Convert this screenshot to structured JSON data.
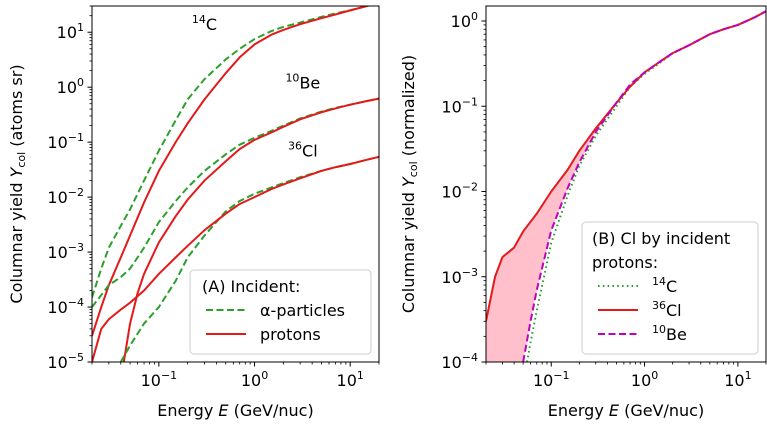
{
  "chart_data": [
    {
      "panel": "A",
      "type": "line",
      "xlabel": "Energy E (GeV/nuc)",
      "ylabel": "Columnar yield Y_col (atoms sr)",
      "xscale": "log",
      "yscale": "log",
      "xlim": [
        0.02,
        20
      ],
      "ylim": [
        1e-05,
        30
      ],
      "xticks": [
        {
          "v": 0.1,
          "b": "10",
          "e": "−1"
        },
        {
          "v": 1,
          "b": "10",
          "e": "0"
        },
        {
          "v": 10,
          "b": "10",
          "e": "1"
        }
      ],
      "yticks": [
        {
          "v": 1e-05,
          "b": "10",
          "e": "−5"
        },
        {
          "v": 0.0001,
          "b": "10",
          "e": "−4"
        },
        {
          "v": 0.001,
          "b": "10",
          "e": "−3"
        },
        {
          "v": 0.01,
          "b": "10",
          "e": "−2"
        },
        {
          "v": 0.1,
          "b": "10",
          "e": "−1"
        },
        {
          "v": 1,
          "b": "10",
          "e": "0"
        },
        {
          "v": 10,
          "b": "10",
          "e": "1"
        }
      ],
      "legend": {
        "placement": "lower-right",
        "title": "(A) Incident:",
        "entries": [
          {
            "label": "α-particles",
            "color": "#2ca02c",
            "dash": "dashed"
          },
          {
            "label": "protons",
            "color": "#e31a1c",
            "dash": "solid"
          }
        ]
      },
      "annotations": [
        {
          "text": "C",
          "sup": "14",
          "x": 0.3,
          "y": 11
        },
        {
          "text": "Be",
          "sup": "10",
          "x": 3.2,
          "y": 0.95
        },
        {
          "text": "Cl",
          "sup": "36",
          "x": 3.2,
          "y": 0.055
        }
      ],
      "series": [
        {
          "isotope": "14C",
          "incident": "alpha",
          "color": "#2ca02c",
          "dash": "dashed",
          "x": [
            0.02,
            0.025,
            0.03,
            0.04,
            0.05,
            0.07,
            0.1,
            0.15,
            0.2,
            0.3,
            0.5,
            0.7,
            1,
            1.5,
            2,
            3,
            5,
            7,
            10,
            15,
            20
          ],
          "y": [
            0.00015,
            0.0005,
            0.0012,
            0.003,
            0.006,
            0.02,
            0.07,
            0.25,
            0.6,
            1.4,
            3.2,
            5,
            7.5,
            10.5,
            12.5,
            15,
            19,
            22,
            25,
            30,
            34
          ]
        },
        {
          "isotope": "14C",
          "incident": "proton",
          "color": "#e31a1c",
          "dash": "solid",
          "x": [
            0.02,
            0.025,
            0.03,
            0.04,
            0.05,
            0.07,
            0.1,
            0.15,
            0.2,
            0.3,
            0.5,
            0.7,
            1,
            1.5,
            2,
            3,
            5,
            7,
            10,
            15,
            20
          ],
          "y": [
            3e-05,
            0.0001,
            0.00025,
            0.0008,
            0.002,
            0.008,
            0.03,
            0.1,
            0.22,
            0.6,
            1.8,
            3.5,
            6,
            9,
            11,
            14,
            18,
            21,
            25,
            30,
            34
          ]
        },
        {
          "isotope": "10Be",
          "incident": "alpha",
          "color": "#2ca02c",
          "dash": "dashed",
          "x": [
            0.02,
            0.03,
            0.04,
            0.05,
            0.07,
            0.1,
            0.15,
            0.2,
            0.3,
            0.5,
            0.7,
            1,
            1.5,
            2,
            3,
            5,
            7,
            10,
            15,
            20
          ],
          "y": [
            0.0001,
            0.00025,
            0.00035,
            0.0005,
            0.0012,
            0.0035,
            0.0085,
            0.015,
            0.03,
            0.06,
            0.09,
            0.12,
            0.16,
            0.2,
            0.27,
            0.36,
            0.42,
            0.48,
            0.56,
            0.62
          ]
        },
        {
          "isotope": "10Be",
          "incident": "proton",
          "color": "#e31a1c",
          "dash": "solid",
          "x": [
            0.043,
            0.05,
            0.06,
            0.07,
            0.1,
            0.15,
            0.2,
            0.3,
            0.5,
            0.7,
            1,
            1.5,
            2,
            3,
            5,
            7,
            10,
            15,
            20
          ],
          "y": [
            1e-05,
            5e-05,
            0.00018,
            0.0004,
            0.0015,
            0.0045,
            0.009,
            0.02,
            0.045,
            0.075,
            0.11,
            0.15,
            0.19,
            0.26,
            0.35,
            0.41,
            0.48,
            0.56,
            0.62
          ]
        },
        {
          "isotope": "36Cl",
          "incident": "alpha",
          "color": "#2ca02c",
          "dash": "dashed",
          "x": [
            0.04,
            0.05,
            0.07,
            0.1,
            0.15,
            0.2,
            0.3,
            0.5,
            0.7,
            1,
            1.5,
            2,
            3,
            5,
            7,
            10,
            15,
            20
          ],
          "y": [
            1e-05,
            2e-05,
            5e-05,
            0.0001,
            0.0003,
            0.0008,
            0.002,
            0.0055,
            0.0085,
            0.0115,
            0.015,
            0.018,
            0.023,
            0.03,
            0.035,
            0.04,
            0.048,
            0.054
          ]
        },
        {
          "isotope": "36Cl",
          "incident": "proton",
          "color": "#e31a1c",
          "dash": "solid",
          "x": [
            0.02,
            0.025,
            0.03,
            0.04,
            0.05,
            0.07,
            0.1,
            0.15,
            0.2,
            0.3,
            0.5,
            0.7,
            1,
            1.5,
            2,
            3,
            5,
            7,
            10,
            15,
            20
          ],
          "y": [
            1e-05,
            4e-05,
            6e-05,
            9e-05,
            0.00012,
            0.0002,
            0.0004,
            0.0008,
            0.0013,
            0.0025,
            0.005,
            0.0075,
            0.01,
            0.014,
            0.017,
            0.022,
            0.03,
            0.035,
            0.04,
            0.048,
            0.054
          ]
        }
      ]
    },
    {
      "panel": "B",
      "type": "line",
      "xlabel": "Energy E (GeV/nuc)",
      "ylabel": "Columnar yield Y_col (normalized)",
      "xscale": "log",
      "yscale": "log",
      "xlim": [
        0.02,
        20
      ],
      "ylim": [
        0.0001,
        1.5
      ],
      "xticks": [
        {
          "v": 0.1,
          "b": "10",
          "e": "−1"
        },
        {
          "v": 1,
          "b": "10",
          "e": "0"
        },
        {
          "v": 10,
          "b": "10",
          "e": "1"
        }
      ],
      "yticks": [
        {
          "v": 0.0001,
          "b": "10",
          "e": "−4"
        },
        {
          "v": 0.001,
          "b": "10",
          "e": "−3"
        },
        {
          "v": 0.01,
          "b": "10",
          "e": "−2"
        },
        {
          "v": 0.1,
          "b": "10",
          "e": "−1"
        },
        {
          "v": 1,
          "b": "10",
          "e": "0"
        }
      ],
      "fill_between": {
        "upper": "36Cl",
        "lower": "10Be",
        "color": "#ffc0cb"
      },
      "legend": {
        "placement": "lower-right",
        "title": [
          "(B) Cl by incident",
          "protons:"
        ],
        "entries": [
          {
            "label": "C",
            "sup": "14",
            "color": "#2ca02c",
            "dash": "dotted"
          },
          {
            "label": "Cl",
            "sup": "36",
            "color": "#e31a1c",
            "dash": "solid"
          },
          {
            "label": "Be",
            "sup": "10",
            "color": "#bf00bf",
            "dash": "dashed"
          }
        ]
      },
      "series": [
        {
          "isotope": "14C",
          "color": "#2ca02c",
          "dash": "dotted",
          "x": [
            0.055,
            0.06,
            0.07,
            0.1,
            0.15,
            0.2,
            0.3,
            0.5,
            0.7,
            1,
            1.5,
            2,
            3,
            5,
            7,
            10,
            15,
            20
          ],
          "y": [
            0.0001,
            0.00017,
            0.0004,
            0.0025,
            0.009,
            0.02,
            0.045,
            0.1,
            0.17,
            0.24,
            0.33,
            0.42,
            0.52,
            0.7,
            0.8,
            0.9,
            1.1,
            1.3
          ]
        },
        {
          "isotope": "36Cl",
          "color": "#e31a1c",
          "dash": "solid",
          "x": [
            0.02,
            0.025,
            0.03,
            0.04,
            0.05,
            0.07,
            0.1,
            0.15,
            0.2,
            0.3,
            0.5,
            0.7,
            1,
            1.5,
            2,
            3,
            5,
            7,
            10,
            15,
            20
          ],
          "y": [
            0.0003,
            0.001,
            0.0017,
            0.0022,
            0.0034,
            0.0055,
            0.01,
            0.018,
            0.03,
            0.055,
            0.11,
            0.17,
            0.25,
            0.34,
            0.42,
            0.52,
            0.7,
            0.8,
            0.9,
            1.1,
            1.3
          ]
        },
        {
          "isotope": "10Be",
          "color": "#bf00bf",
          "dash": "dashed",
          "x": [
            0.05,
            0.06,
            0.07,
            0.1,
            0.15,
            0.2,
            0.3,
            0.5,
            0.7,
            1,
            1.5,
            2,
            3,
            5,
            7,
            10,
            15,
            20
          ],
          "y": [
            0.0001,
            0.0003,
            0.0007,
            0.0035,
            0.011,
            0.022,
            0.05,
            0.11,
            0.18,
            0.25,
            0.34,
            0.42,
            0.52,
            0.7,
            0.8,
            0.9,
            1.1,
            1.3
          ]
        }
      ]
    }
  ]
}
